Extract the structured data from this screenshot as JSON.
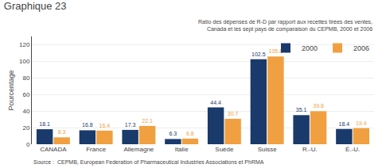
{
  "chart_data": {
    "type": "bar",
    "title": "Graphique 23",
    "subtitle": "Ratio des dépenses de R-D par rapport aux recettes tirées des ventes, Canada et les sept pays de comparaison du CEPMB, 2000 et 2006",
    "ylabel": "Pourcentage",
    "source": "Source :  CEPMB, European Federation of Pharmaceutical Industries Associations et PhRMA",
    "categories": [
      "CANADA",
      "France",
      "Allemagne",
      "Italie",
      "Suède",
      "Suisse",
      "R.-U.",
      "É.-U."
    ],
    "series": [
      {
        "name": "2000",
        "color": "#1a3a6b",
        "values": [
          18.1,
          16.8,
          17.3,
          6.3,
          44.4,
          102.5,
          35.1,
          18.4
        ]
      },
      {
        "name": "2006",
        "color": "#f0a040",
        "values": [
          8.3,
          16.4,
          22.1,
          6.8,
          30.7,
          105.8,
          39.8,
          19.4
        ]
      }
    ],
    "ylim": [
      0,
      130
    ],
    "yticks": [
      0,
      20,
      40,
      60,
      80,
      100,
      120
    ],
    "grid": true,
    "legend": "upper right",
    "data_labels": true
  }
}
